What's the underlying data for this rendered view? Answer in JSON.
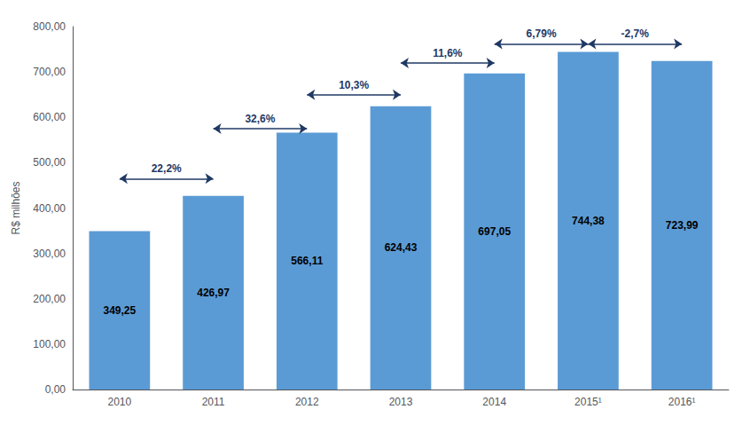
{
  "chart_data": {
    "type": "bar",
    "categories": [
      "2010",
      "2011",
      "2012",
      "2013",
      "2014",
      "2015¹",
      "2016¹"
    ],
    "values": [
      349.25,
      426.97,
      566.11,
      624.43,
      697.05,
      744.38,
      723.99
    ],
    "value_labels": [
      "349,25",
      "426,97",
      "566,11",
      "624,43",
      "697,05",
      "744,38",
      "723,99"
    ],
    "data_labels": true,
    "color": "#5B9BD5",
    "ylabel": "R$ milhões",
    "ylim": [
      0,
      800
    ],
    "yticks": [
      {
        "value": 0,
        "label": "0,00"
      },
      {
        "value": 100,
        "label": "100,00"
      },
      {
        "value": 200,
        "label": "200,00"
      },
      {
        "value": 300,
        "label": "300,00"
      },
      {
        "value": 400,
        "label": "400,00"
      },
      {
        "value": 500,
        "label": "500,00"
      },
      {
        "value": 600,
        "label": "600,00"
      },
      {
        "value": 700,
        "label": "700,00"
      },
      {
        "value": 800,
        "label": "800,00"
      }
    ],
    "grid": false,
    "annotations": [
      {
        "text": "22,2%",
        "from": "2010",
        "to": "2011",
        "y": 465,
        "color": "#1F3864"
      },
      {
        "text": "32,6%",
        "from": "2011",
        "to": "2012",
        "y": 575,
        "color": "#1F3864"
      },
      {
        "text": "10,3%",
        "from": "2012",
        "to": "2013",
        "y": 650,
        "color": "#1F3864"
      },
      {
        "text": "11,6%",
        "from": "2013",
        "to": "2014",
        "y": 720,
        "color": "#1F3864"
      },
      {
        "text": "6,79%",
        "from": "2014",
        "to": "2015¹",
        "y": 762,
        "color": "#1F3864"
      },
      {
        "text": "-2,7%",
        "from": "2015¹",
        "to": "2016¹",
        "y": 762,
        "color": "#1F3864"
      }
    ]
  }
}
